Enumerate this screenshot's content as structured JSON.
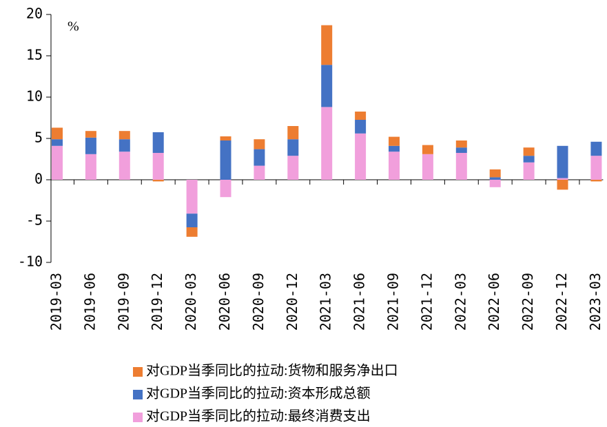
{
  "chart_data": {
    "type": "stacked_bar",
    "annotation": "%",
    "categories": [
      "2019-03",
      "2019-06",
      "2019-09",
      "2019-12",
      "2020-03",
      "2020-06",
      "2020-09",
      "2020-12",
      "2021-03",
      "2021-06",
      "2021-09",
      "2021-12",
      "2022-03",
      "2022-06",
      "2022-09",
      "2022-12",
      "2023-03"
    ],
    "series": [
      {
        "name": "对GDP当季同比的拉动:货物和服务净出口",
        "color": "#ed7d31",
        "values": [
          1.4,
          0.8,
          1.0,
          -0.2,
          -1.15,
          0.5,
          1.2,
          1.6,
          4.8,
          1.0,
          1.1,
          1.1,
          0.85,
          0.95,
          1.0,
          -1.2,
          -0.2
        ]
      },
      {
        "name": "对GDP当季同比的拉动:资本形成总额",
        "color": "#4472c4",
        "values": [
          0.8,
          2.0,
          1.5,
          2.5,
          -1.65,
          4.75,
          2.0,
          2.0,
          5.1,
          1.65,
          0.7,
          0,
          0.65,
          0.3,
          0.8,
          3.9,
          1.7
        ]
      },
      {
        "name": "对GDP当季同比的拉动:最终消费支出",
        "color": "#f19fdc",
        "values": [
          4.1,
          3.1,
          3.4,
          3.25,
          -4.1,
          -2.1,
          1.7,
          2.9,
          8.8,
          5.6,
          3.4,
          3.1,
          3.25,
          -0.9,
          2.1,
          0.2,
          2.9
        ]
      }
    ],
    "ylim": [
      -10,
      20
    ],
    "yticks": [
      -10,
      -5,
      0,
      5,
      10,
      15,
      20
    ],
    "grid": false
  }
}
